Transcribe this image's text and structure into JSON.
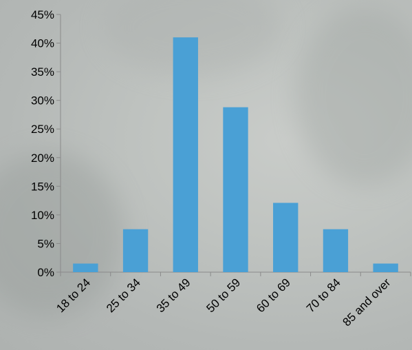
{
  "chart_data": {
    "type": "bar",
    "categories": [
      "18 to 24",
      "25 to 34",
      "35 to 49",
      "50 to 59",
      "60 to 69",
      "70 to 84",
      "85 and over"
    ],
    "values": [
      1.5,
      7.5,
      41,
      28.8,
      12.1,
      7.5,
      1.5
    ],
    "ylim": [
      0,
      45
    ],
    "yticks": [
      "0%",
      "5%",
      "10%",
      "15%",
      "20%",
      "25%",
      "30%",
      "35%",
      "40%",
      "45%"
    ],
    "bar_color": "#4aa0d5",
    "grid": false,
    "legend": "none"
  }
}
